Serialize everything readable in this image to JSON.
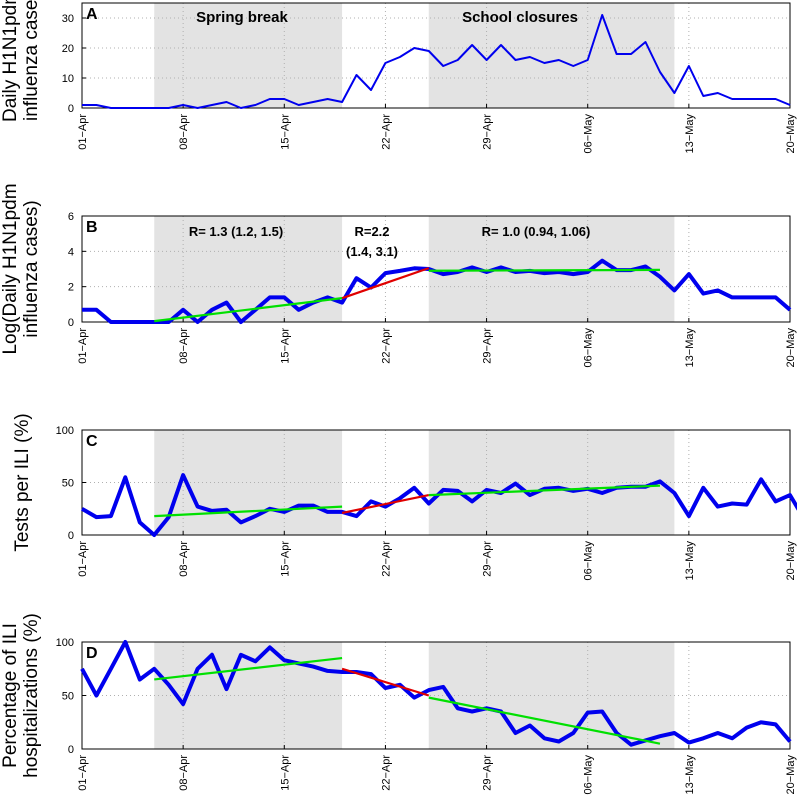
{
  "chart_data": {
    "type": "line",
    "x_ticks": [
      "01−Apr",
      "08−Apr",
      "15−Apr",
      "22−Apr",
      "29−Apr",
      "06−May",
      "13−May",
      "20−May"
    ],
    "x_range": [
      "01-Apr",
      "20-May"
    ],
    "shaded_periods": [
      {
        "label": "Spring break",
        "start": "06-Apr",
        "end": "19-Apr"
      },
      {
        "label": "School closures",
        "start": "25-Apr",
        "end": "12-May"
      }
    ],
    "panels": [
      {
        "panel": "A",
        "ylabel": [
          "Daily H1N1pdm",
          "influenza cases"
        ],
        "ylim": [
          0,
          35
        ],
        "yticks": [
          0,
          10,
          20,
          30
        ],
        "grid": "dotted",
        "series": [
          {
            "color": "#0000ee",
            "values": [
              1,
              1,
              0,
              0,
              0,
              0,
              0,
              1,
              0,
              1,
              2,
              0,
              1,
              3,
              3,
              1,
              2,
              3,
              2,
              11,
              6,
              15,
              17,
              20,
              19,
              14,
              16,
              21,
              16,
              21,
              16,
              17,
              15,
              16,
              14,
              16,
              31,
              18,
              18,
              22,
              12,
              5,
              14,
              4,
              5,
              3,
              3,
              3,
              3,
              1
            ]
          }
        ],
        "annotations": [
          {
            "text": "Spring break"
          },
          {
            "text": "School closures"
          }
        ]
      },
      {
        "panel": "B",
        "ylabel": [
          "Log(Daily H1N1pdm",
          "influenza cases)"
        ],
        "ylim": [
          0,
          6
        ],
        "yticks": [
          0,
          2,
          4,
          6
        ],
        "grid": "dotted",
        "series": [
          {
            "color": "#0000ee",
            "values": [
              0.69,
              0.69,
              0,
              0,
              0,
              0,
              0,
              0.69,
              0,
              0.69,
              1.1,
              0,
              0.69,
              1.39,
              1.39,
              0.69,
              1.1,
              1.39,
              1.1,
              2.48,
              1.95,
              2.77,
              2.89,
              3.04,
              3,
              2.71,
              2.83,
              3.09,
              2.83,
              3.09,
              2.83,
              2.89,
              2.77,
              2.83,
              2.71,
              2.83,
              3.47,
              2.94,
              2.94,
              3.14,
              2.56,
              1.79,
              2.71,
              1.61,
              1.79,
              1.39,
              1.39,
              1.39,
              1.39,
              0.69
            ]
          }
        ],
        "fits": [
          {
            "color": "#00e000",
            "start": 5,
            "end": 18,
            "y0": 0.05,
            "y1": 1.35
          },
          {
            "color": "#e00000",
            "start": 18,
            "end": 24,
            "y0": 1.35,
            "y1": 3.05
          },
          {
            "color": "#00e000",
            "start": 24,
            "end": 40,
            "y0": 2.9,
            "y1": 2.95
          }
        ],
        "annotations": [
          {
            "text": "R= 1.3  (1.2, 1.5)"
          },
          {
            "text": "R=2.2"
          },
          {
            "text": "(1.4, 3.1)"
          },
          {
            "text": "R= 1.0  (0.94, 1.06)"
          }
        ]
      },
      {
        "panel": "C",
        "ylabel": [
          "Tests per ILI (%)"
        ],
        "ylim": [
          0,
          100
        ],
        "yticks": [
          0,
          50,
          100
        ],
        "grid": "dotted",
        "series": [
          {
            "color": "#0000ee",
            "values": [
              25,
              17,
              18,
              55,
              12,
              0,
              17,
              57,
              27,
              23,
              24,
              12,
              18,
              25,
              22,
              28,
              28,
              22,
              22,
              18,
              32,
              27,
              35,
              45,
              30,
              43,
              42,
              32,
              43,
              40,
              49,
              38,
              44,
              45,
              42,
              44,
              40,
              45,
              46,
              46,
              51,
              40,
              18,
              45,
              27,
              30,
              29,
              53,
              32,
              38,
              15
            ]
          }
        ],
        "fits": [
          {
            "color": "#00e000",
            "start": 5,
            "end": 18,
            "y0": 18,
            "y1": 27
          },
          {
            "color": "#e00000",
            "start": 18,
            "end": 24,
            "y0": 21,
            "y1": 38
          },
          {
            "color": "#00e000",
            "start": 24,
            "end": 40,
            "y0": 38,
            "y1": 47
          }
        ]
      },
      {
        "panel": "D",
        "ylabel": [
          "Percentage of ILI",
          "hospitalizations (%)"
        ],
        "ylim": [
          0,
          100
        ],
        "yticks": [
          0,
          50,
          100
        ],
        "grid": "dotted",
        "series": [
          {
            "color": "#0000ee",
            "values": [
              75,
              50,
              75,
              100,
              65,
              75,
              60,
              42,
              75,
              88,
              56,
              88,
              82,
              95,
              83,
              80,
              77,
              73,
              72,
              72,
              70,
              57,
              60,
              48,
              55,
              58,
              38,
              35,
              38,
              35,
              15,
              22,
              10,
              7,
              15,
              34,
              35,
              15,
              4,
              8,
              12,
              15,
              6,
              10,
              15,
              10,
              20,
              25,
              23,
              7
            ]
          }
        ],
        "fits": [
          {
            "color": "#00e000",
            "start": 5,
            "end": 18,
            "y0": 65,
            "y1": 85
          },
          {
            "color": "#e00000",
            "start": 18,
            "end": 24,
            "y0": 75,
            "y1": 50
          },
          {
            "color": "#00e000",
            "start": 24,
            "end": 40,
            "y0": 48,
            "y1": 5
          }
        ]
      }
    ]
  }
}
